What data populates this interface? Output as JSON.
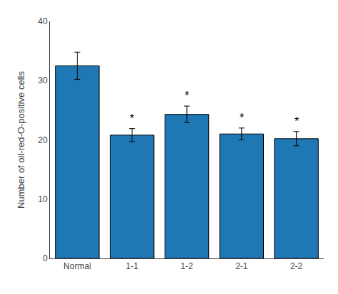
{
  "chart_data": {
    "type": "bar",
    "categories": [
      "Normal",
      "1-1",
      "1-2",
      "2-1",
      "2-2"
    ],
    "values": [
      32.5,
      20.8,
      24.3,
      21.0,
      20.2
    ],
    "errors": [
      2.3,
      1.1,
      1.4,
      1.0,
      1.2
    ],
    "ylabel": "Number of oil-red-O-positive cells",
    "ylim": [
      0,
      40
    ],
    "yticks": [
      0,
      10,
      20,
      30,
      40
    ],
    "grid": false,
    "annotations": [
      {
        "category": "1-1",
        "text": "*"
      },
      {
        "category": "1-2",
        "text": "*"
      },
      {
        "category": "2-1",
        "text": "*"
      },
      {
        "category": "2-2",
        "text": "*"
      }
    ]
  }
}
